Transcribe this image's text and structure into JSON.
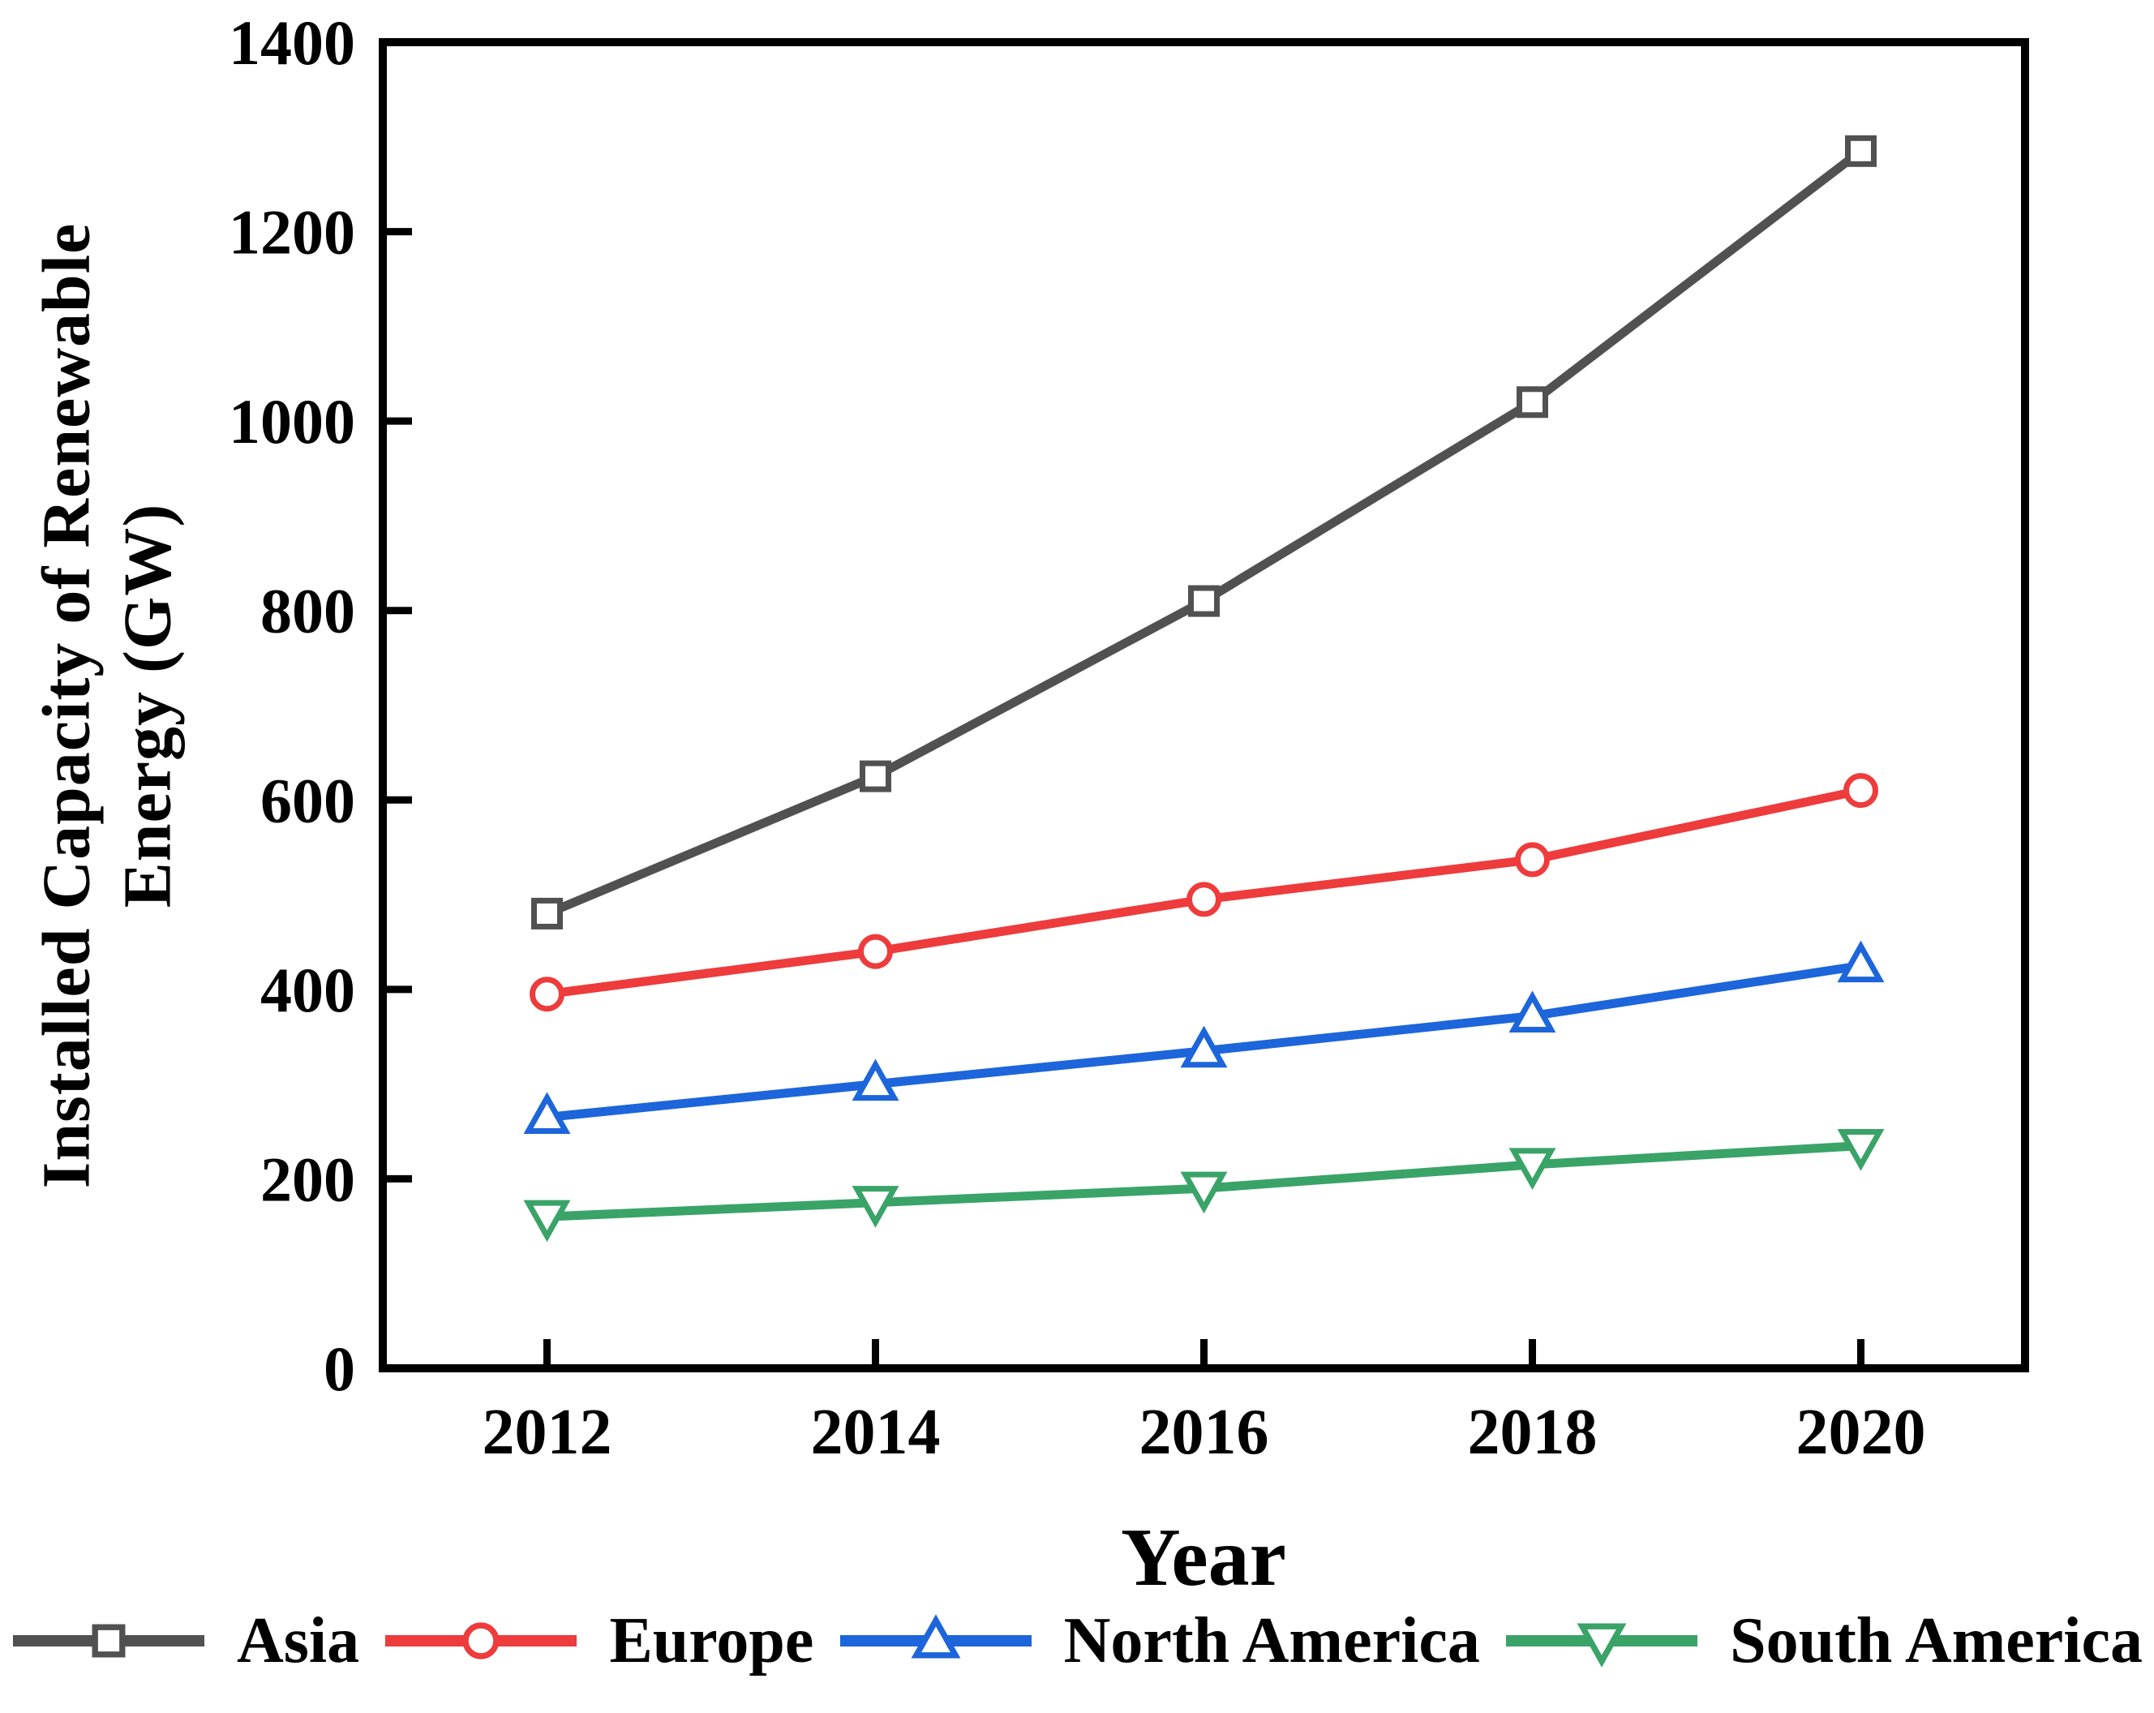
{
  "figure": {
    "background": "#ffffff",
    "axis_color": "#000000",
    "text_color": "#000000"
  },
  "chart_data": {
    "type": "line",
    "title": "",
    "xlabel": "Year",
    "ylabel": "Installed Capacity of Renewable Energy (GW)",
    "ylabel_lines": [
      "Installed Capacity of Renewable",
      "Energy  (GW)"
    ],
    "x": [
      2012,
      2014,
      2016,
      2018,
      2020
    ],
    "xtick_labels": [
      "2012",
      "2014",
      "2016",
      "2018",
      "2020"
    ],
    "yticks": [
      0,
      200,
      400,
      600,
      800,
      1000,
      1200,
      1400
    ],
    "ytick_labels": [
      "0",
      "200",
      "400",
      "600",
      "800",
      "1000",
      "1200",
      "1400"
    ],
    "xlim": [
      2011,
      2021
    ],
    "ylim": [
      0,
      1400
    ],
    "grid": false,
    "legend_position": "bottom",
    "series": [
      {
        "name": "Asia",
        "color": "#515151",
        "marker": "square",
        "values": [
          480,
          625,
          810,
          1020,
          1285
        ]
      },
      {
        "name": "Europe",
        "color": "#ee3b3c",
        "marker": "circle",
        "values": [
          395,
          440,
          495,
          537,
          610
        ]
      },
      {
        "name": "North America",
        "color": "#1d65da",
        "marker": "triangle-up",
        "values": [
          265,
          300,
          335,
          372,
          425
        ]
      },
      {
        "name": "South America",
        "color": "#3aa368",
        "marker": "triangle-down",
        "values": [
          160,
          175,
          190,
          215,
          235
        ]
      }
    ]
  }
}
